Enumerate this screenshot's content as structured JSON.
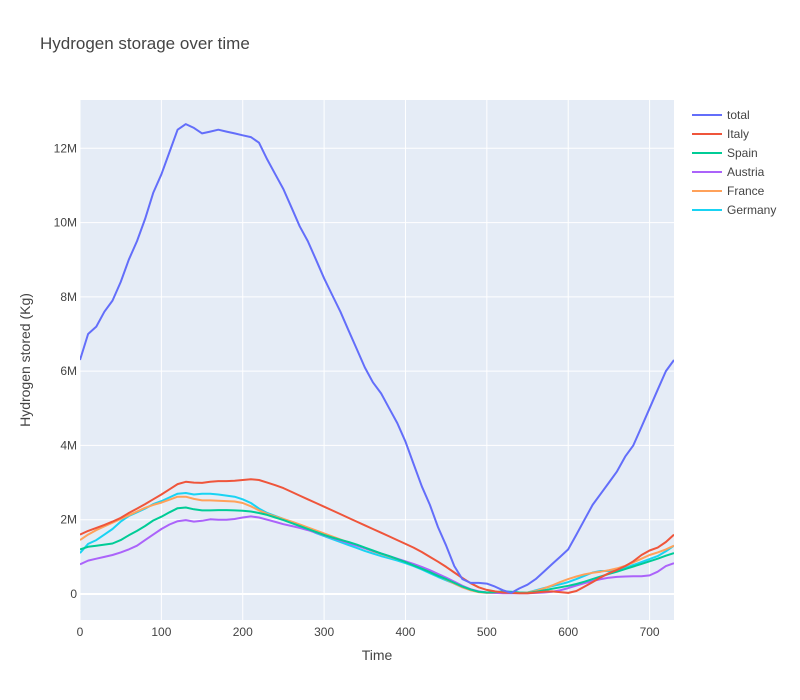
{
  "chart_data": {
    "type": "line",
    "title": "Hydrogen storage over time",
    "xlabel": "Time",
    "ylabel": "Hydrogen stored (Kg)",
    "xlim": [
      0,
      730
    ],
    "ylim": [
      -700000,
      13300000
    ],
    "xticks": [
      0,
      100,
      200,
      300,
      400,
      500,
      600,
      700
    ],
    "yticks": [
      0,
      2000000,
      4000000,
      6000000,
      8000000,
      10000000,
      12000000
    ],
    "ytick_labels": [
      "0",
      "2M",
      "4M",
      "6M",
      "8M",
      "10M",
      "12M"
    ],
    "grid": true,
    "legend_position": "top-right",
    "colors": {
      "plot_bg": "#e5ecf6",
      "grid": "#ffffff"
    },
    "series": [
      {
        "name": "total",
        "color": "#636efa",
        "x": [
          0,
          10,
          20,
          30,
          40,
          50,
          60,
          70,
          80,
          90,
          100,
          110,
          120,
          130,
          140,
          150,
          160,
          170,
          180,
          190,
          200,
          210,
          220,
          230,
          240,
          250,
          260,
          270,
          280,
          290,
          300,
          310,
          320,
          330,
          340,
          350,
          360,
          370,
          380,
          390,
          400,
          410,
          420,
          430,
          440,
          450,
          460,
          470,
          480,
          490,
          500,
          510,
          520,
          530,
          540,
          550,
          560,
          570,
          580,
          590,
          600,
          610,
          620,
          630,
          640,
          650,
          660,
          670,
          680,
          690,
          700,
          710,
          720,
          730
        ],
        "y": [
          6300000,
          7000000,
          7200000,
          7600000,
          7900000,
          8400000,
          9000000,
          9500000,
          10100000,
          10800000,
          11300000,
          11900000,
          12500000,
          12650000,
          12550000,
          12400000,
          12450000,
          12500000,
          12450000,
          12400000,
          12350000,
          12300000,
          12150000,
          11700000,
          11300000,
          10900000,
          10400000,
          9900000,
          9500000,
          9000000,
          8500000,
          8050000,
          7600000,
          7100000,
          6600000,
          6100000,
          5700000,
          5400000,
          5000000,
          4600000,
          4100000,
          3500000,
          2900000,
          2400000,
          1800000,
          1300000,
          750000,
          400000,
          300000,
          300000,
          280000,
          200000,
          100000,
          30000,
          150000,
          250000,
          400000,
          600000,
          800000,
          1000000,
          1200000,
          1600000,
          2000000,
          2400000,
          2700000,
          3000000,
          3300000,
          3700000,
          4000000,
          4500000,
          5000000,
          5500000,
          6000000,
          6300000
        ]
      },
      {
        "name": "Italy",
        "color": "#ef553b",
        "x": [
          0,
          10,
          20,
          30,
          40,
          50,
          60,
          70,
          80,
          90,
          100,
          110,
          120,
          130,
          140,
          150,
          160,
          170,
          180,
          190,
          200,
          210,
          220,
          230,
          240,
          250,
          260,
          270,
          280,
          290,
          300,
          310,
          320,
          330,
          340,
          350,
          360,
          370,
          380,
          390,
          400,
          410,
          420,
          430,
          440,
          450,
          460,
          470,
          480,
          490,
          500,
          510,
          520,
          530,
          540,
          550,
          560,
          570,
          580,
          590,
          600,
          610,
          620,
          630,
          640,
          650,
          660,
          670,
          680,
          690,
          700,
          710,
          720,
          730
        ],
        "y": [
          1600000,
          1700000,
          1780000,
          1860000,
          1950000,
          2050000,
          2180000,
          2300000,
          2420000,
          2550000,
          2680000,
          2820000,
          2960000,
          3020000,
          3000000,
          2990000,
          3020000,
          3040000,
          3040000,
          3050000,
          3070000,
          3090000,
          3070000,
          3000000,
          2930000,
          2850000,
          2750000,
          2650000,
          2550000,
          2450000,
          2350000,
          2250000,
          2150000,
          2050000,
          1950000,
          1850000,
          1750000,
          1650000,
          1550000,
          1450000,
          1350000,
          1250000,
          1130000,
          1000000,
          870000,
          730000,
          580000,
          430000,
          290000,
          180000,
          110000,
          70000,
          40000,
          30000,
          20000,
          20000,
          40000,
          60000,
          70000,
          50000,
          30000,
          80000,
          200000,
          320000,
          450000,
          560000,
          650000,
          750000,
          880000,
          1050000,
          1170000,
          1250000,
          1400000,
          1600000
        ]
      },
      {
        "name": "Spain",
        "color": "#00cc96",
        "x": [
          0,
          10,
          20,
          30,
          40,
          50,
          60,
          70,
          80,
          90,
          100,
          110,
          120,
          130,
          140,
          150,
          160,
          170,
          180,
          190,
          200,
          210,
          220,
          230,
          240,
          250,
          260,
          270,
          280,
          290,
          300,
          310,
          320,
          330,
          340,
          350,
          360,
          370,
          380,
          390,
          400,
          410,
          420,
          430,
          440,
          450,
          460,
          470,
          480,
          490,
          500,
          510,
          520,
          530,
          540,
          550,
          560,
          570,
          580,
          590,
          600,
          610,
          620,
          630,
          640,
          650,
          660,
          670,
          680,
          690,
          700,
          710,
          720,
          730
        ],
        "y": [
          1200000,
          1270000,
          1300000,
          1330000,
          1360000,
          1450000,
          1580000,
          1700000,
          1830000,
          1980000,
          2080000,
          2200000,
          2310000,
          2330000,
          2280000,
          2250000,
          2250000,
          2260000,
          2260000,
          2250000,
          2240000,
          2220000,
          2180000,
          2130000,
          2060000,
          1990000,
          1910000,
          1830000,
          1750000,
          1670000,
          1590000,
          1520000,
          1460000,
          1400000,
          1330000,
          1250000,
          1170000,
          1090000,
          1020000,
          940000,
          860000,
          770000,
          680000,
          590000,
          490000,
          400000,
          300000,
          200000,
          120000,
          60000,
          40000,
          50000,
          70000,
          60000,
          40000,
          30000,
          60000,
          100000,
          140000,
          180000,
          220000,
          270000,
          330000,
          400000,
          470000,
          540000,
          600000,
          670000,
          740000,
          810000,
          880000,
          950000,
          1030000,
          1100000
        ]
      },
      {
        "name": "Austria",
        "color": "#ab63fa",
        "x": [
          0,
          10,
          20,
          30,
          40,
          50,
          60,
          70,
          80,
          90,
          100,
          110,
          120,
          130,
          140,
          150,
          160,
          170,
          180,
          190,
          200,
          210,
          220,
          230,
          240,
          250,
          260,
          270,
          280,
          290,
          300,
          310,
          320,
          330,
          340,
          350,
          360,
          370,
          380,
          390,
          400,
          410,
          420,
          430,
          440,
          450,
          460,
          470,
          480,
          490,
          500,
          510,
          520,
          530,
          540,
          550,
          560,
          570,
          580,
          590,
          600,
          610,
          620,
          630,
          640,
          650,
          660,
          670,
          680,
          690,
          700,
          710,
          720,
          730
        ],
        "y": [
          800000,
          900000,
          950000,
          1000000,
          1050000,
          1120000,
          1200000,
          1300000,
          1450000,
          1600000,
          1750000,
          1870000,
          1960000,
          1990000,
          1950000,
          1970000,
          2010000,
          2000000,
          2000000,
          2020000,
          2060000,
          2090000,
          2060000,
          2000000,
          1940000,
          1880000,
          1830000,
          1780000,
          1720000,
          1650000,
          1580000,
          1510000,
          1440000,
          1370000,
          1300000,
          1230000,
          1160000,
          1090000,
          1020000,
          950000,
          880000,
          810000,
          730000,
          640000,
          540000,
          440000,
          330000,
          220000,
          130000,
          70000,
          40000,
          30000,
          20000,
          20000,
          20000,
          20000,
          30000,
          40000,
          60000,
          100000,
          160000,
          230000,
          290000,
          350000,
          400000,
          440000,
          460000,
          470000,
          480000,
          480000,
          500000,
          600000,
          750000,
          830000
        ]
      },
      {
        "name": "France",
        "color": "#ffa15a",
        "x": [
          0,
          10,
          20,
          30,
          40,
          50,
          60,
          70,
          80,
          90,
          100,
          110,
          120,
          130,
          140,
          150,
          160,
          170,
          180,
          190,
          200,
          210,
          220,
          230,
          240,
          250,
          260,
          270,
          280,
          290,
          300,
          310,
          320,
          330,
          340,
          350,
          360,
          370,
          380,
          390,
          400,
          410,
          420,
          430,
          440,
          450,
          460,
          470,
          480,
          490,
          500,
          510,
          520,
          530,
          540,
          550,
          560,
          570,
          580,
          590,
          600,
          610,
          620,
          630,
          640,
          650,
          660,
          670,
          680,
          690,
          700,
          710,
          720,
          730
        ],
        "y": [
          1450000,
          1600000,
          1720000,
          1820000,
          1920000,
          2020000,
          2120000,
          2220000,
          2320000,
          2400000,
          2460000,
          2540000,
          2620000,
          2620000,
          2560000,
          2520000,
          2520000,
          2510000,
          2500000,
          2490000,
          2450000,
          2360000,
          2250000,
          2160000,
          2090000,
          2020000,
          1950000,
          1870000,
          1790000,
          1710000,
          1630000,
          1550000,
          1470000,
          1390000,
          1310000,
          1230000,
          1150000,
          1080000,
          1010000,
          940000,
          870000,
          790000,
          700000,
          600000,
          500000,
          390000,
          280000,
          180000,
          100000,
          50000,
          30000,
          30000,
          40000,
          40000,
          30000,
          40000,
          80000,
          150000,
          230000,
          320000,
          400000,
          470000,
          530000,
          570000,
          600000,
          640000,
          690000,
          760000,
          850000,
          950000,
          1050000,
          1120000,
          1200000,
          1300000
        ]
      },
      {
        "name": "Germany",
        "color": "#19d3f3",
        "x": [
          0,
          10,
          20,
          30,
          40,
          50,
          60,
          70,
          80,
          90,
          100,
          110,
          120,
          130,
          140,
          150,
          160,
          170,
          180,
          190,
          200,
          210,
          220,
          230,
          240,
          250,
          260,
          270,
          280,
          290,
          300,
          310,
          320,
          330,
          340,
          350,
          360,
          370,
          380,
          390,
          400,
          410,
          420,
          430,
          440,
          450,
          460,
          470,
          480,
          490,
          500,
          510,
          520,
          530,
          540,
          550,
          560,
          570,
          580,
          590,
          600,
          610,
          620,
          630,
          640,
          650,
          660,
          670,
          680,
          690,
          700,
          710,
          720,
          730
        ],
        "y": [
          1100000,
          1350000,
          1450000,
          1600000,
          1750000,
          1950000,
          2100000,
          2200000,
          2300000,
          2420000,
          2500000,
          2600000,
          2700000,
          2720000,
          2680000,
          2700000,
          2700000,
          2680000,
          2650000,
          2620000,
          2550000,
          2450000,
          2300000,
          2180000,
          2100000,
          2020000,
          1930000,
          1840000,
          1740000,
          1640000,
          1560000,
          1480000,
          1400000,
          1320000,
          1240000,
          1160000,
          1090000,
          1020000,
          960000,
          900000,
          830000,
          750000,
          660000,
          560000,
          460000,
          370000,
          280000,
          180000,
          110000,
          60000,
          40000,
          50000,
          60000,
          50000,
          30000,
          40000,
          100000,
          160000,
          210000,
          260000,
          320000,
          400000,
          490000,
          580000,
          620000,
          620000,
          650000,
          700000,
          780000,
          860000,
          940000,
          1020000,
          1150000,
          1300000
        ]
      }
    ]
  }
}
